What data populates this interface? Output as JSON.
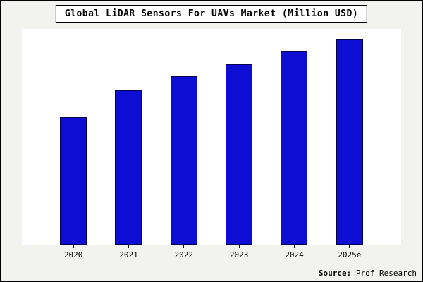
{
  "title": "Global LiDAR Sensors For UAVs Market (Million USD)",
  "source": {
    "label": "Source:",
    "text": " Prof Research"
  },
  "colors": {
    "bar": "#0d0dd3",
    "bar_border": "#00004d",
    "background": "#f2f2ee",
    "plot_background": "#ffffff",
    "frame_border": "#000000"
  },
  "chart_data": {
    "type": "bar",
    "title": "Global LiDAR Sensors For UAVs Market (Million USD)",
    "categories": [
      "2020",
      "2021",
      "2022",
      "2023",
      "2024",
      "2025e"
    ],
    "values": [
      62,
      75,
      82,
      88,
      94,
      100
    ],
    "xlabel": "",
    "ylabel": "",
    "ylim": [
      0,
      105
    ],
    "grid": false,
    "legend": false,
    "y_axis_labels_visible": false,
    "note": "No y-axis tick labels are shown in the source image; values are relative heights normalized so 2025e = 100."
  }
}
